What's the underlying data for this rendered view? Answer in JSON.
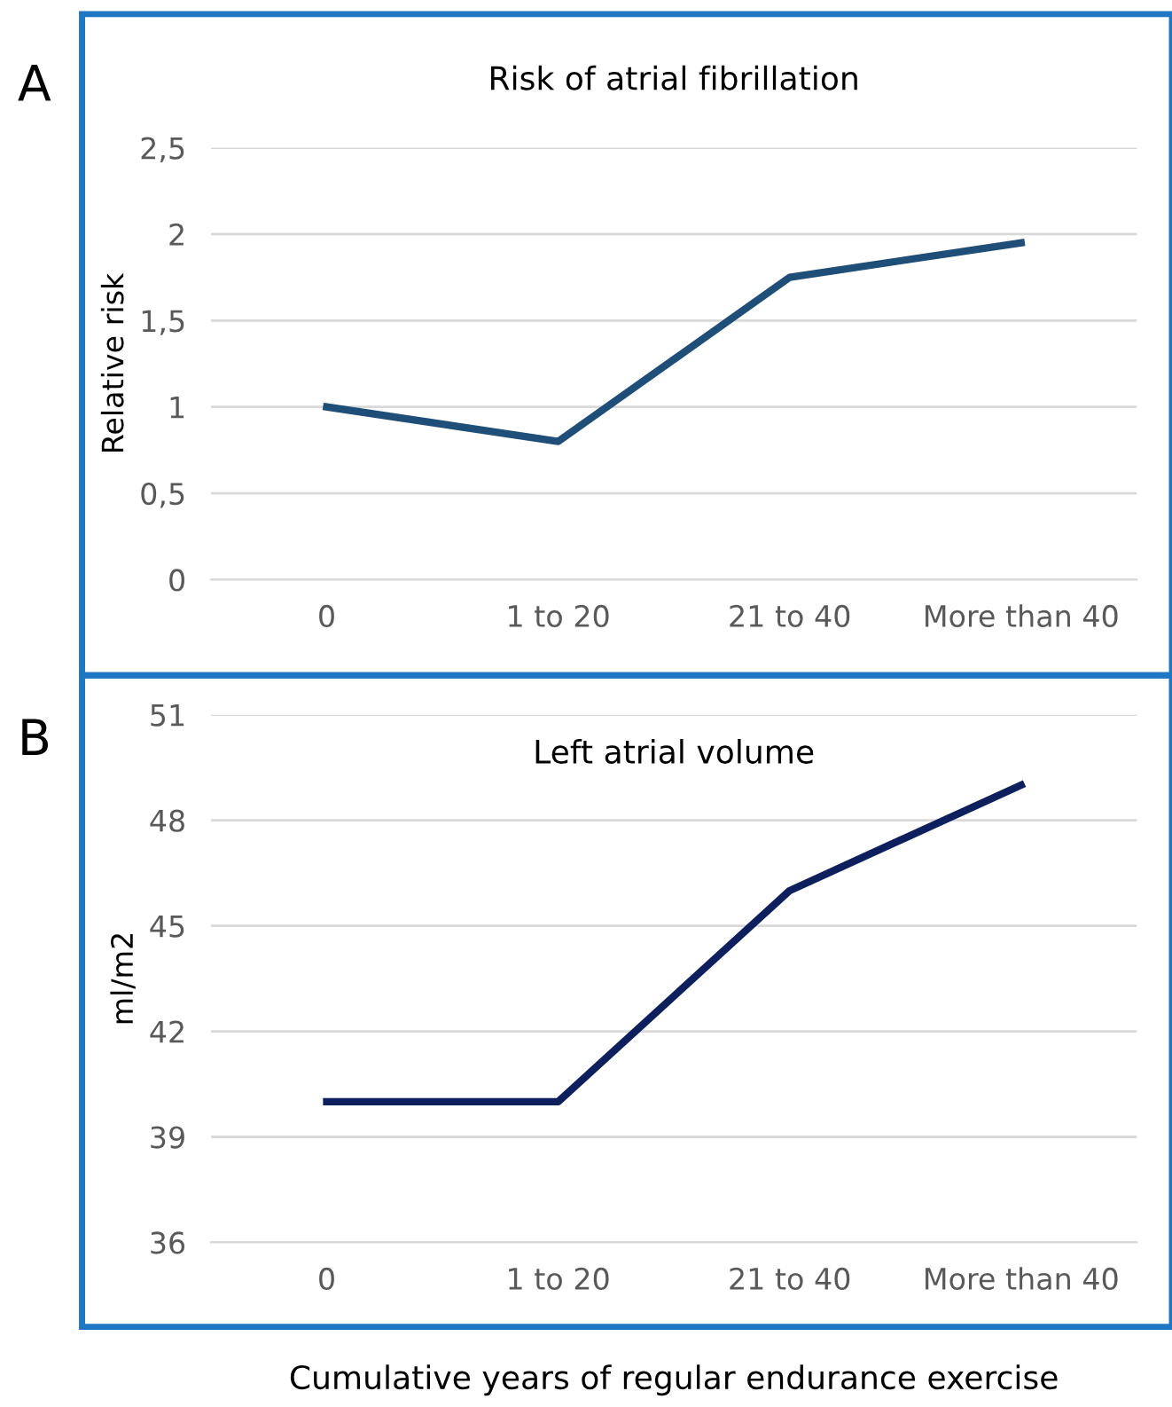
{
  "chart_data": [
    {
      "type": "line",
      "title": "Risk of atrial fibrillation",
      "ylabel": "Relative risk",
      "annotations": [
        "A"
      ],
      "categories": [
        "0",
        "1 to 20",
        "21 to 40",
        "More than 40"
      ],
      "series": [
        {
          "color": "#1f4e79",
          "values": [
            1,
            0.8,
            1.75,
            1.95
          ]
        }
      ],
      "ylim": [
        0,
        2.5
      ],
      "yticks": [
        0,
        {
          "value": 0.5,
          "label": "0,5"
        },
        1,
        {
          "value": 1.5,
          "label": "1,5"
        },
        2,
        {
          "value": 2.5,
          "label": "2,5"
        }
      ],
      "grid": "y",
      "legend": false,
      "marker": "none",
      "line_style": "solid"
    },
    {
      "type": "line",
      "title": "Left atrial volume",
      "ylabel": "ml/m2",
      "xlabel": "Cumulative years of regular endurance exercise",
      "annotations": [
        "B"
      ],
      "categories": [
        "0",
        "1 to 20",
        "21 to 40",
        "More than 40"
      ],
      "series": [
        {
          "color": "#0d1f5c",
          "values": [
            40,
            40,
            46,
            49
          ]
        }
      ],
      "ylim": [
        36,
        51
      ],
      "yticks": [
        36,
        39,
        42,
        45,
        48,
        51
      ],
      "grid": "y",
      "legend": false,
      "marker": "none",
      "line_style": "solid"
    }
  ]
}
